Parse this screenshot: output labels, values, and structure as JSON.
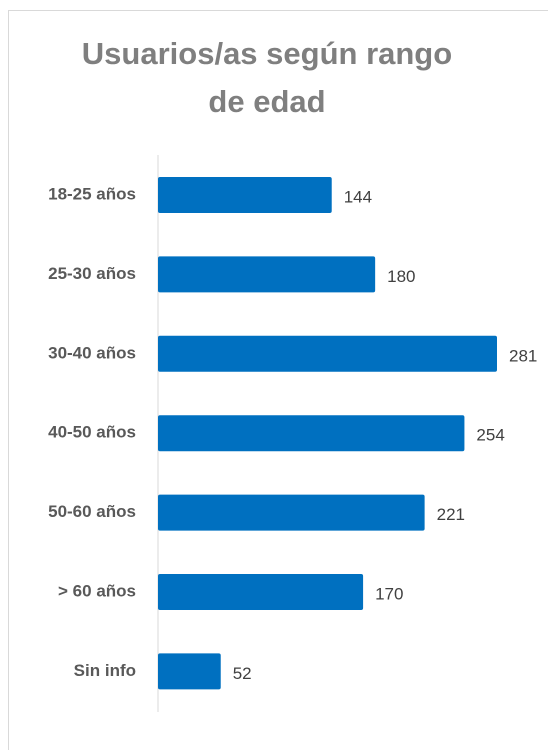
{
  "chart_data": {
    "type": "bar",
    "orientation": "horizontal",
    "title": "Usuarios/as según rango de edad",
    "categories": [
      "18-25 años",
      "25-30 años",
      "30-40 años",
      "40-50 años",
      "50-60 años",
      "> 60 años",
      "Sin info"
    ],
    "values": [
      144,
      180,
      281,
      254,
      221,
      170,
      52
    ],
    "color": "#0070c0"
  }
}
